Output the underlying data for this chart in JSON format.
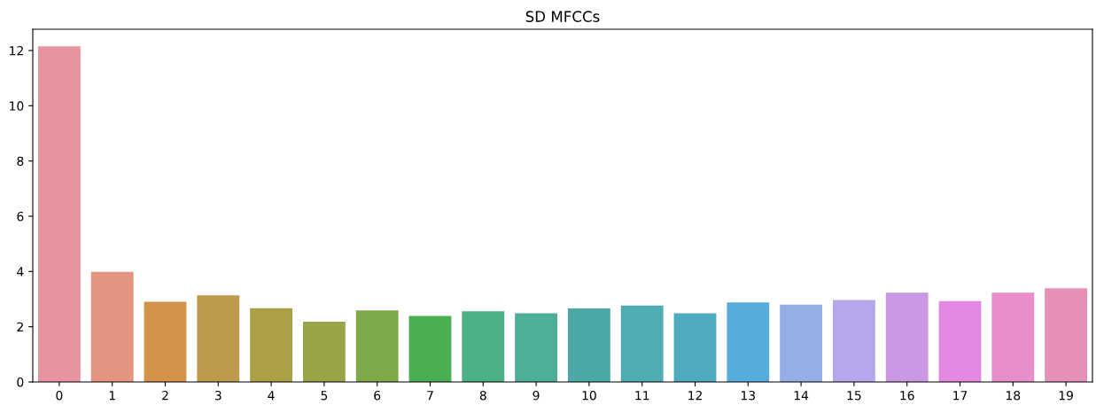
{
  "chart_data": {
    "type": "bar",
    "title": "SD MFCCs",
    "categories": [
      "0",
      "1",
      "2",
      "3",
      "4",
      "5",
      "6",
      "7",
      "8",
      "9",
      "10",
      "11",
      "12",
      "13",
      "14",
      "15",
      "16",
      "17",
      "18",
      "19"
    ],
    "values": [
      12.15,
      3.99,
      2.9,
      3.14,
      2.67,
      2.18,
      2.59,
      2.39,
      2.56,
      2.49,
      2.66,
      2.77,
      2.49,
      2.88,
      2.8,
      2.97,
      3.23,
      2.93,
      3.23,
      3.39
    ],
    "colors": [
      "#e8949f",
      "#e49581",
      "#d4934b",
      "#bd9a4c",
      "#aba047",
      "#98a447",
      "#7da948",
      "#4aaf53",
      "#4daf86",
      "#4eae98",
      "#4ca8a4",
      "#4facb3",
      "#50aac0",
      "#56acda",
      "#95aee6",
      "#b6a6eb",
      "#cb98e6",
      "#e388e3",
      "#e88ecb",
      "#e790b6"
    ],
    "ylim": [
      0,
      12.77
    ],
    "yticks": [
      0,
      2,
      4,
      6,
      8,
      10,
      12
    ],
    "grid": false
  }
}
